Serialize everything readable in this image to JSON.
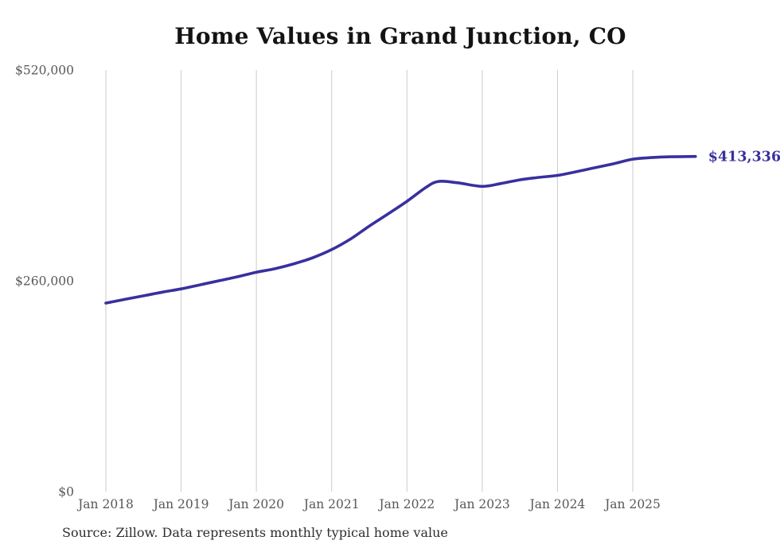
{
  "chart_data": {
    "type": "line",
    "title": "Home Values in Grand Junction, CO",
    "xlabel": "",
    "ylabel": "",
    "ylim": [
      0,
      520000
    ],
    "grid": "vertical-gridlines-only",
    "legend": "none",
    "line_color": "#38309e",
    "gridline_color": "#cbcbcb",
    "axis_label_color": "#57575c",
    "end_label": "$413,336",
    "latest_value": 413336,
    "y_ticks": [
      {
        "label": "$0",
        "value": 0
      },
      {
        "label": "$260,000",
        "value": 260000
      },
      {
        "label": "$520,000",
        "value": 520000
      }
    ],
    "x_ticks": [
      {
        "label": "Jan 2018",
        "date": "2018-01"
      },
      {
        "label": "Jan 2019",
        "date": "2019-01"
      },
      {
        "label": "Jan 2020",
        "date": "2020-01"
      },
      {
        "label": "Jan 2021",
        "date": "2021-01"
      },
      {
        "label": "Jan 2022",
        "date": "2022-01"
      },
      {
        "label": "Jan 2023",
        "date": "2023-01"
      },
      {
        "label": "Jan 2024",
        "date": "2024-01"
      },
      {
        "label": "Jan 2025",
        "date": "2025-01"
      }
    ],
    "series": [
      {
        "name": "Monthly typical home value",
        "color": "#38309e",
        "points": [
          [
            "2018-01",
            232500
          ],
          [
            "2018-04",
            237000
          ],
          [
            "2018-07",
            241500
          ],
          [
            "2018-10",
            246000
          ],
          [
            "2019-01",
            250000
          ],
          [
            "2019-04",
            255000
          ],
          [
            "2019-07",
            260000
          ],
          [
            "2019-10",
            265000
          ],
          [
            "2020-01",
            270500
          ],
          [
            "2020-04",
            275000
          ],
          [
            "2020-07",
            281000
          ],
          [
            "2020-10",
            288500
          ],
          [
            "2021-01",
            298500
          ],
          [
            "2021-04",
            311500
          ],
          [
            "2021-07",
            327500
          ],
          [
            "2021-10",
            342500
          ],
          [
            "2022-01",
            358000
          ],
          [
            "2022-04",
            375000
          ],
          [
            "2022-06",
            382500
          ],
          [
            "2022-09",
            381000
          ],
          [
            "2023-01",
            376500
          ],
          [
            "2023-04",
            380000
          ],
          [
            "2023-07",
            384500
          ],
          [
            "2023-10",
            387500
          ],
          [
            "2024-01",
            390000
          ],
          [
            "2024-04",
            394500
          ],
          [
            "2024-07",
            399500
          ],
          [
            "2024-10",
            404500
          ],
          [
            "2025-01",
            410000
          ],
          [
            "2025-04",
            412000
          ],
          [
            "2025-07",
            413000
          ],
          [
            "2025-11",
            413336
          ]
        ]
      }
    ],
    "source_note": "Source: Zillow. Data represents monthly typical home value"
  }
}
